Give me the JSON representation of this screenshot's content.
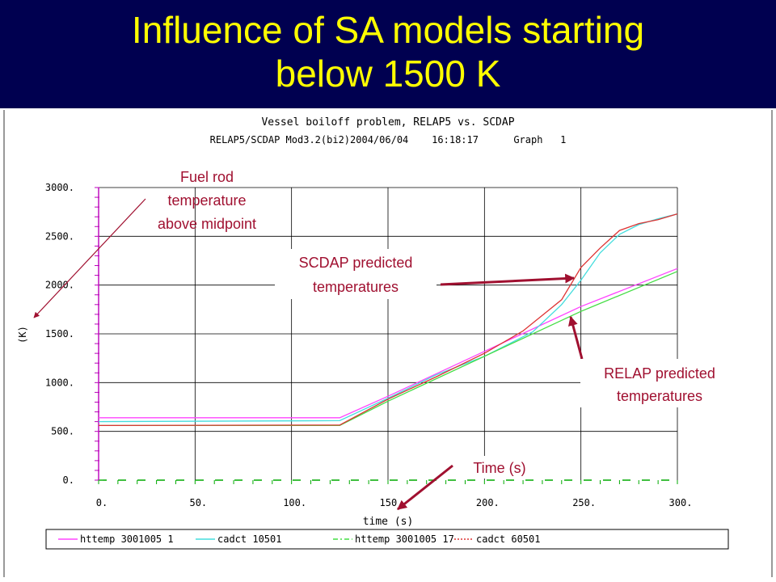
{
  "slide": {
    "title_line1": "Influence of SA models starting",
    "title_line2": "below 1500 K"
  },
  "colors": {
    "title_background": "#000050",
    "title_text": "#ffff00",
    "annotation": "#a01030",
    "series_httemp_1": "#ff44ff",
    "series_cadct_10501": "#44dddd",
    "series_httemp_17": "#44dd44",
    "series_cadct_60501": "#dd3333"
  },
  "annotations": {
    "fuel_rod": [
      "Fuel rod",
      "temperature",
      "above midpoint"
    ],
    "scdap": [
      "SCDAP predicted",
      "temperatures"
    ],
    "relap": [
      "RELAP predicted",
      "temperatures"
    ],
    "time": "Time (s)"
  },
  "chart_data": {
    "type": "line",
    "title": "Vessel boiloff problem, RELAP5 vs. SCDAP",
    "subtitle": "RELAP5/SCDAP Mod3.2(bi2)2004/06/04    16:18:17      Graph   1",
    "xlabel": "time (s)",
    "ylabel": "(K)",
    "xlim": [
      0,
      300
    ],
    "ylim": [
      0,
      3000
    ],
    "x_ticks": [
      "0.",
      "50.",
      "100.",
      "150.",
      "200.",
      "250.",
      "300."
    ],
    "y_ticks": [
      "0.",
      "500.",
      "1000.",
      "1500.",
      "2000.",
      "2500.",
      "3000."
    ],
    "grid": true,
    "legend_position": "bottom",
    "series": [
      {
        "name": "httemp 3001005 1",
        "color": "#ff44ff",
        "points": [
          [
            0,
            640
          ],
          [
            125,
            640
          ],
          [
            150,
            860
          ],
          [
            200,
            1320
          ],
          [
            250,
            1780
          ],
          [
            300,
            2170
          ]
        ]
      },
      {
        "name": "cadct 10501",
        "color": "#44dddd",
        "points": [
          [
            0,
            600
          ],
          [
            125,
            610
          ],
          [
            150,
            840
          ],
          [
            175,
            1080
          ],
          [
            200,
            1270
          ],
          [
            225,
            1520
          ],
          [
            240,
            1800
          ],
          [
            250,
            2050
          ],
          [
            260,
            2330
          ],
          [
            270,
            2520
          ],
          [
            280,
            2620
          ],
          [
            290,
            2680
          ],
          [
            300,
            2730
          ]
        ]
      },
      {
        "name": "httemp 3001005 17",
        "color": "#44dd44",
        "points": [
          [
            0,
            560
          ],
          [
            125,
            560
          ],
          [
            150,
            810
          ],
          [
            200,
            1270
          ],
          [
            250,
            1730
          ],
          [
            300,
            2140
          ]
        ]
      },
      {
        "name": "cadct 60501",
        "color": "#dd3333",
        "points": [
          [
            0,
            560
          ],
          [
            125,
            565
          ],
          [
            150,
            830
          ],
          [
            175,
            1060
          ],
          [
            200,
            1300
          ],
          [
            220,
            1530
          ],
          [
            240,
            1850
          ],
          [
            250,
            2180
          ],
          [
            260,
            2380
          ],
          [
            270,
            2560
          ],
          [
            280,
            2630
          ],
          [
            290,
            2670
          ],
          [
            300,
            2730
          ]
        ]
      }
    ]
  }
}
